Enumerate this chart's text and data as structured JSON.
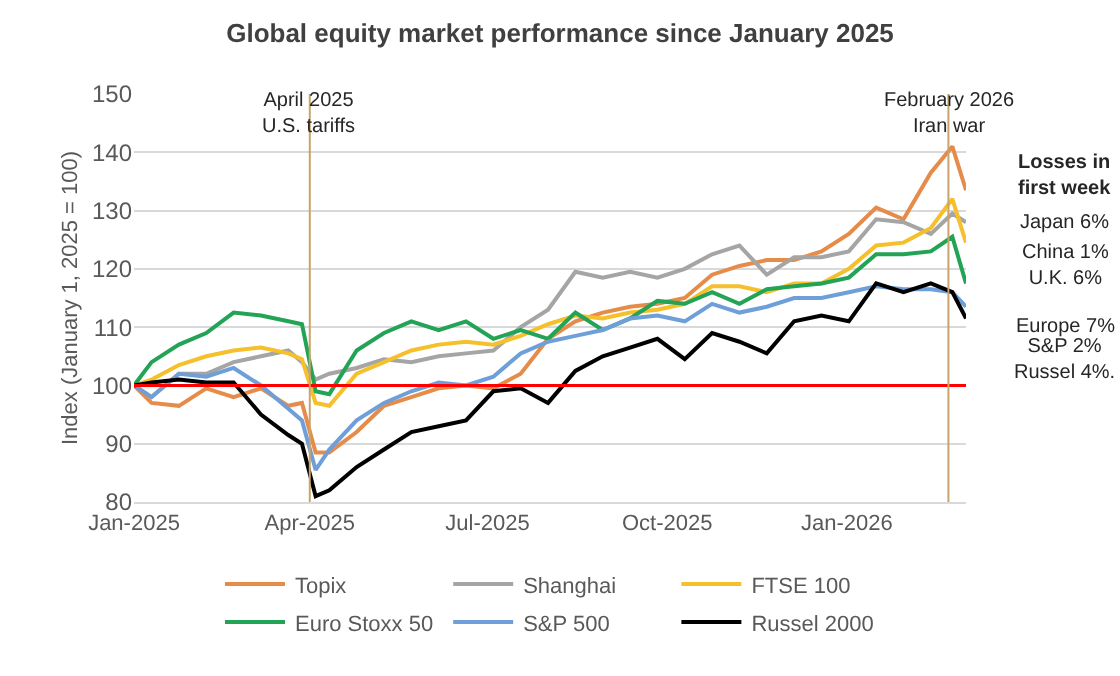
{
  "chart_data": {
    "type": "line",
    "title": "Global equity market performance since January 2025",
    "ylabel": "Index (January 1, 2025 = 100)",
    "x": [
      "2025-01-01",
      "2025-01-10",
      "2025-01-24",
      "2025-02-07",
      "2025-02-21",
      "2025-03-07",
      "2025-03-21",
      "2025-03-28",
      "2025-04-04",
      "2025-04-11",
      "2025-04-25",
      "2025-05-09",
      "2025-05-23",
      "2025-06-06",
      "2025-06-20",
      "2025-07-04",
      "2025-07-18",
      "2025-08-01",
      "2025-08-15",
      "2025-08-29",
      "2025-09-12",
      "2025-09-26",
      "2025-10-10",
      "2025-10-24",
      "2025-11-07",
      "2025-11-21",
      "2025-12-05",
      "2025-12-19",
      "2026-01-02",
      "2026-01-16",
      "2026-01-30",
      "2026-02-13",
      "2026-02-24",
      "2026-03-03"
    ],
    "series": [
      {
        "name": "Topix",
        "color": "#e58c4a",
        "values": [
          100,
          97,
          96.5,
          99.5,
          98,
          99.5,
          96.5,
          97,
          88.5,
          88.5,
          92,
          96.5,
          98,
          99.5,
          100,
          99.5,
          102,
          108,
          111,
          112.5,
          113.5,
          114,
          115,
          119,
          120.5,
          121.5,
          121.5,
          123,
          126,
          130.5,
          128.5,
          136.5,
          141,
          133.5
        ]
      },
      {
        "name": "Shanghai",
        "color": "#a5a5a5",
        "values": [
          100,
          98,
          102,
          102,
          104,
          105,
          106,
          104,
          101,
          102,
          103,
          104.5,
          104,
          105,
          105.5,
          106,
          110,
          113,
          119.5,
          118.5,
          119.5,
          118.5,
          120,
          122.5,
          124,
          119,
          122,
          122,
          123,
          128.5,
          128,
          126,
          129.5,
          128
        ]
      },
      {
        "name": "FTSE 100",
        "color": "#f5c02c",
        "values": [
          100,
          101,
          103.5,
          105,
          106,
          106.5,
          105.5,
          104.5,
          97,
          96.5,
          102,
          104,
          106,
          107,
          107.5,
          107,
          108.5,
          110.5,
          112,
          111.5,
          112.5,
          113,
          114,
          117,
          117,
          116,
          117.5,
          117.5,
          120,
          124,
          124.5,
          127,
          132,
          124.5
        ]
      },
      {
        "name": "Euro Stoxx 50",
        "color": "#22a355",
        "values": [
          100,
          104,
          107,
          109,
          112.5,
          112,
          111,
          110.5,
          99,
          98.5,
          106,
          109,
          111,
          109.5,
          111,
          108,
          109.5,
          108,
          112.5,
          109.5,
          111.5,
          114.5,
          114,
          116,
          114,
          116.5,
          117,
          117.5,
          118.5,
          122.5,
          122.5,
          123,
          125.5,
          117.5
        ]
      },
      {
        "name": "S&P 500",
        "color": "#6f9fd8",
        "values": [
          100,
          98,
          102,
          101.5,
          103,
          100,
          96,
          94,
          85.5,
          89,
          94,
          97,
          99,
          100.5,
          100,
          101.5,
          105.5,
          107.5,
          108.5,
          109.5,
          111.5,
          112,
          111,
          114,
          112.5,
          113.5,
          115,
          115,
          116,
          117,
          116.5,
          116.5,
          116,
          113.5
        ]
      },
      {
        "name": "Russel 2000",
        "color": "#000000",
        "values": [
          100,
          100.5,
          101,
          100.5,
          100.5,
          95,
          91.5,
          90,
          81,
          82,
          86,
          89,
          92,
          93,
          94,
          99,
          99.5,
          97,
          102.5,
          105,
          106.5,
          108,
          104.5,
          109,
          107.5,
          105.5,
          111,
          112,
          111,
          117.5,
          116,
          117.5,
          116,
          111.5
        ]
      }
    ],
    "xlim": [
      "2025-01-01",
      "2026-03-03"
    ],
    "xticks": [
      {
        "value": "2025-01-01",
        "label": "Jan-2025"
      },
      {
        "value": "2025-04-01",
        "label": "Apr-2025"
      },
      {
        "value": "2025-07-01",
        "label": "Jul-2025"
      },
      {
        "value": "2025-10-01",
        "label": "Oct-2025"
      },
      {
        "value": "2026-01-01",
        "label": "Jan-2026"
      }
    ],
    "ylim": [
      80,
      150
    ],
    "yticks": [
      80,
      90,
      100,
      110,
      120,
      130,
      140,
      150
    ],
    "ref_lines": [
      {
        "axis": "y",
        "value": 100,
        "color": "#ff0000"
      },
      {
        "axis": "x",
        "value": "2025-04-01",
        "label": "April 2025\nU.S. tariffs",
        "color": "#c8a46a"
      },
      {
        "axis": "x",
        "value": "2026-02-22",
        "label": "February 2026\nIran war",
        "color": "#c8a46a"
      }
    ],
    "annotations": [
      "Losses in\nfirst week",
      "Japan 6%",
      "China 1%\nU.K. 6%",
      "Europe 7%",
      "S&P 2%\nRussel 4%."
    ],
    "grid": "y",
    "legend": "bottom",
    "line_style": "solid"
  }
}
